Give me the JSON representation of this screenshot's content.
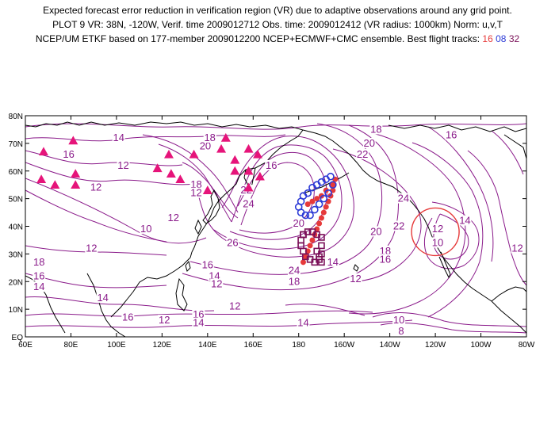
{
  "header": {
    "line1": "Expected forecast error reduction in verification region (VR) due to adaptive observations around any grid point.",
    "line2": "PLOT 9 VR: 38N, -120W, Verif. time 2009012712 Obs. time: 2009012412 (VR radius: 1000km) Norm: u,v,T",
    "line3_prefix": "NCEP/UM ETKF based on 177-member 2009012200 NCEP+ECMWF+CMC ensemble. Best flight tracks:",
    "track_16": "16",
    "track_08": "08",
    "track_32": "32"
  },
  "colors": {
    "contour": "#8a1a8a",
    "coast": "#000000",
    "grid": "#000000",
    "track_16": "#e63a3a",
    "track_08": "#2b39d6",
    "track_32": "#7a1058",
    "triangles": "#e6147a",
    "vr_circle": "#e63a3a"
  },
  "axes": {
    "lat_labels": [
      "80N",
      "70N",
      "60N",
      "50N",
      "40N",
      "30N",
      "20N",
      "10N",
      "EQ"
    ],
    "lon_labels": [
      "60E",
      "80E",
      "100E",
      "120E",
      "140E",
      "160E",
      "180",
      "160W",
      "140W",
      "120W",
      "100W",
      "80W"
    ]
  },
  "contour_labels": [
    {
      "text": "14",
      "lon": 101,
      "lat": 72
    },
    {
      "text": "16",
      "lon": 79,
      "lat": 66
    },
    {
      "text": "12",
      "lon": 103,
      "lat": 62
    },
    {
      "text": "12",
      "lon": 91,
      "lat": 54
    },
    {
      "text": "10",
      "lon": 113,
      "lat": 39
    },
    {
      "text": "12",
      "lon": 125,
      "lat": 43
    },
    {
      "text": "18",
      "lon": 135,
      "lat": 55
    },
    {
      "text": "12",
      "lon": 135,
      "lat": 52
    },
    {
      "text": "20",
      "lon": 139,
      "lat": 69
    },
    {
      "text": "18",
      "lon": 141,
      "lat": 72
    },
    {
      "text": "16",
      "lon": 168,
      "lat": 62
    },
    {
      "text": "22",
      "lon": 157,
      "lat": 53
    },
    {
      "text": "24",
      "lon": 158,
      "lat": 48
    },
    {
      "text": "26",
      "lon": 151,
      "lat": 34
    },
    {
      "text": "20",
      "lon": 180,
      "lat": 41
    },
    {
      "text": "12",
      "lon": 89,
      "lat": 32
    },
    {
      "text": "18",
      "lon": 66,
      "lat": 27
    },
    {
      "text": "16",
      "lon": 66,
      "lat": 22
    },
    {
      "text": "14",
      "lon": 66,
      "lat": 18
    },
    {
      "text": "16",
      "lon": 140,
      "lat": 26
    },
    {
      "text": "14",
      "lon": 143,
      "lat": 22
    },
    {
      "text": "12",
      "lon": 144,
      "lat": 19
    },
    {
      "text": "14",
      "lon": 94,
      "lat": 14
    },
    {
      "text": "16",
      "lon": 105,
      "lat": 7
    },
    {
      "text": "12",
      "lon": 121,
      "lat": 6
    },
    {
      "text": "16",
      "lon": 136,
      "lat": 8
    },
    {
      "text": "14",
      "lon": 136,
      "lat": 5
    },
    {
      "text": "12",
      "lon": 152,
      "lat": 11
    },
    {
      "text": "14",
      "lon": 182,
      "lat": 5
    },
    {
      "text": "22",
      "lon": 208,
      "lat": 66
    },
    {
      "text": "18",
      "lon": 214,
      "lat": 75
    },
    {
      "text": "20",
      "lon": 211,
      "lat": 70
    },
    {
      "text": "24",
      "lon": 178,
      "lat": 24
    },
    {
      "text": "18",
      "lon": 178,
      "lat": 20
    },
    {
      "text": "14",
      "lon": 195,
      "lat": 27
    },
    {
      "text": "12",
      "lon": 205,
      "lat": 21
    },
    {
      "text": "18",
      "lon": 218,
      "lat": 31
    },
    {
      "text": "16",
      "lon": 218,
      "lat": 28
    },
    {
      "text": "20",
      "lon": 214,
      "lat": 38
    },
    {
      "text": "22",
      "lon": 224,
      "lat": 40
    },
    {
      "text": "24",
      "lon": 226,
      "lat": 50
    },
    {
      "text": "16",
      "lon": 247,
      "lat": 73
    },
    {
      "text": "12",
      "lon": 241,
      "lat": 39
    },
    {
      "text": "10",
      "lon": 241,
      "lat": 34
    },
    {
      "text": "14",
      "lon": 253,
      "lat": 42
    },
    {
      "text": "12",
      "lon": 276,
      "lat": 32
    },
    {
      "text": "10",
      "lon": 224,
      "lat": 6
    },
    {
      "text": "8",
      "lon": 225,
      "lat": 2
    }
  ],
  "vr_circle": {
    "lon": 240,
    "lat": 38
  },
  "tracks": {
    "16": [
      [
        196,
        57
      ],
      [
        195,
        55
      ],
      [
        195,
        53
      ],
      [
        194,
        51
      ],
      [
        193,
        49
      ],
      [
        192,
        47
      ],
      [
        191,
        45
      ],
      [
        190,
        43
      ],
      [
        189,
        41
      ],
      [
        188,
        39
      ],
      [
        187,
        37
      ],
      [
        186,
        35
      ],
      [
        185,
        33
      ],
      [
        184,
        31
      ],
      [
        183,
        29
      ],
      [
        182,
        27
      ],
      [
        184,
        48
      ],
      [
        186,
        49
      ],
      [
        188,
        50
      ],
      [
        190,
        51
      ],
      [
        192,
        53
      ]
    ],
    "08": [
      [
        194,
        58
      ],
      [
        192,
        57
      ],
      [
        190,
        56
      ],
      [
        188,
        55
      ],
      [
        186,
        54
      ],
      [
        184,
        52
      ],
      [
        182,
        51
      ],
      [
        181,
        49
      ],
      [
        180,
        47
      ],
      [
        181,
        45
      ],
      [
        183,
        44
      ],
      [
        185,
        44
      ],
      [
        187,
        46
      ],
      [
        189,
        48
      ],
      [
        191,
        50
      ],
      [
        193,
        52
      ],
      [
        195,
        55
      ]
    ],
    "32": [
      [
        182,
        37
      ],
      [
        184,
        38
      ],
      [
        186,
        38
      ],
      [
        188,
        37
      ],
      [
        190,
        36
      ],
      [
        190,
        33
      ],
      [
        190,
        30
      ],
      [
        189,
        28
      ],
      [
        187,
        27
      ],
      [
        185,
        28
      ],
      [
        183,
        29
      ],
      [
        182,
        31
      ],
      [
        181,
        33
      ],
      [
        181,
        35
      ],
      [
        182,
        37
      ],
      [
        188,
        31
      ],
      [
        189,
        29
      ],
      [
        190,
        27
      ]
    ]
  },
  "triangles": [
    [
      68,
      67
    ],
    [
      67,
      57
    ],
    [
      73,
      55
    ],
    [
      82,
      55
    ],
    [
      82,
      59
    ],
    [
      81,
      71
    ],
    [
      123,
      66
    ],
    [
      118,
      61
    ],
    [
      124,
      59
    ],
    [
      128,
      57
    ],
    [
      134,
      66
    ],
    [
      146,
      68
    ],
    [
      148,
      72
    ],
    [
      152,
      60
    ],
    [
      152,
      64
    ],
    [
      158,
      68
    ],
    [
      158,
      60
    ],
    [
      158,
      54
    ],
    [
      162,
      66
    ],
    [
      163,
      58
    ],
    [
      140,
      53
    ]
  ]
}
